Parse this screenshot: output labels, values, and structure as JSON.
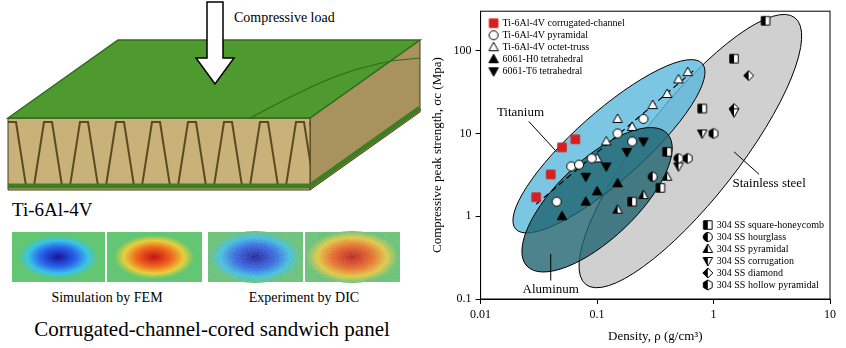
{
  "illustration": {
    "load_label": "Compressive load",
    "material": "Ti-6Al-4V",
    "panels": [
      "Simulation by FEM",
      "Experiment by DIC"
    ],
    "caption": "Corrugated-channel-cored sandwich panel"
  },
  "chart_data": {
    "type": "scatter",
    "log": true,
    "grid": false,
    "x_label": "Density, ρ (g/cm³)",
    "y_label": "Compressive peak strength, σc (Mpa)",
    "xlim": [
      0.01,
      10
    ],
    "xticks": [
      0.01,
      0.1,
      1,
      10
    ],
    "ylim": [
      0.1,
      300
    ],
    "yticks": [
      0.1,
      1,
      10,
      100
    ],
    "series": [
      {
        "name": "Ti-6Al-4V corrugated-channel",
        "color": "#d62020",
        "marker": "square-filled",
        "legend": "upper-left",
        "x": [
          0.03,
          0.04,
          0.05,
          0.065
        ],
        "values": [
          1.7,
          3.2,
          6.8,
          8.5
        ]
      },
      {
        "name": "Ti-6Al-4V pyramidal",
        "color": "#000000",
        "marker": "circle-open",
        "legend": "upper-left",
        "x": [
          0.045,
          0.06,
          0.07,
          0.09,
          0.15,
          0.2,
          0.25
        ],
        "values": [
          1.5,
          4,
          4.2,
          5,
          10,
          8,
          15
        ]
      },
      {
        "name": "Ti-6Al-4V octet-truss",
        "color": "#000000",
        "marker": "triangle-open",
        "legend": "upper-left",
        "x": [
          0.1,
          0.12,
          0.15,
          0.2,
          0.3,
          0.4,
          0.5,
          0.6
        ],
        "values": [
          5,
          8,
          15,
          12,
          22,
          30,
          45,
          55
        ]
      },
      {
        "name": "6061-H0 tetrahedral",
        "color": "#000000",
        "marker": "triangle-filled",
        "legend": "upper-left",
        "x": [
          0.05,
          0.08,
          0.1,
          0.15
        ],
        "values": [
          1,
          1.5,
          2,
          2.5
        ]
      },
      {
        "name": "6061-T6 tetrahedral",
        "color": "#000000",
        "marker": "triangle_down-filled",
        "legend": "upper-left",
        "x": [
          0.08,
          0.12,
          0.18,
          0.25
        ],
        "values": [
          3,
          4,
          6,
          8
        ]
      },
      {
        "name": "304 SS square-honeycomb",
        "color": "#000000",
        "marker": "square-half",
        "legend": "lower-right",
        "x": [
          0.2,
          0.35,
          0.4,
          0.8,
          1.5,
          2.8
        ],
        "values": [
          1.5,
          2.2,
          6,
          20,
          80,
          230
        ]
      },
      {
        "name": "304 SS hourglass",
        "color": "#000000",
        "marker": "circle-half",
        "legend": "lower-right",
        "x": [
          0.3,
          0.5
        ],
        "values": [
          3,
          5
        ]
      },
      {
        "name": "304 SS pyramidal",
        "color": "#000000",
        "marker": "triangle-half",
        "legend": "lower-right",
        "x": [
          0.15,
          0.25,
          0.4
        ],
        "values": [
          1.2,
          1.8,
          3
        ]
      },
      {
        "name": "304 SS corrugation",
        "color": "#000000",
        "marker": "triangle_down-half",
        "legend": "lower-right",
        "x": [
          0.5,
          0.8,
          1.5
        ],
        "values": [
          4,
          10,
          18
        ]
      },
      {
        "name": "304 SS diamond",
        "color": "#000000",
        "marker": "diamond-half",
        "legend": "lower-right",
        "x": [
          1.5,
          2
        ],
        "values": [
          20,
          50
        ]
      },
      {
        "name": "304 SS hollow pyramidal",
        "color": "#000000",
        "marker": "hexagon-half",
        "legend": "lower-right",
        "x": [
          0.6,
          1
        ],
        "values": [
          5,
          10
        ]
      },
      {
        "type": "line",
        "line_style": "dashed",
        "color": "#000000",
        "x": [
          0.03,
          0.7
        ],
        "values": [
          1.4,
          60
        ]
      }
    ],
    "regions": [
      {
        "name": "Stainless steel",
        "color": "#c4c4c4",
        "ends": [
          [
            0.08,
            0.15
          ],
          [
            5,
            250
          ]
        ],
        "side": [
          1.3,
          2.5
        ],
        "label_at": [
          3,
          2.5
        ],
        "pointer": [
          1.5,
          6
        ]
      },
      {
        "name": "Titanium",
        "color": "#5ab9dc",
        "ends": [
          [
            0.02,
            0.7
          ],
          [
            0.8,
            70
          ]
        ],
        "side": [
          0.07,
          12
        ],
        "label_at": [
          0.022,
          18
        ],
        "pointer": [
          0.045,
          6
        ]
      },
      {
        "name": "Aluminum",
        "color": "#1f6470",
        "ends": [
          [
            0.025,
            0.25
          ],
          [
            0.4,
            10
          ]
        ],
        "side": [
          0.15,
          0.6
        ],
        "label_at": [
          0.04,
          0.13
        ],
        "pointer": [
          0.04,
          0.35
        ]
      }
    ]
  }
}
